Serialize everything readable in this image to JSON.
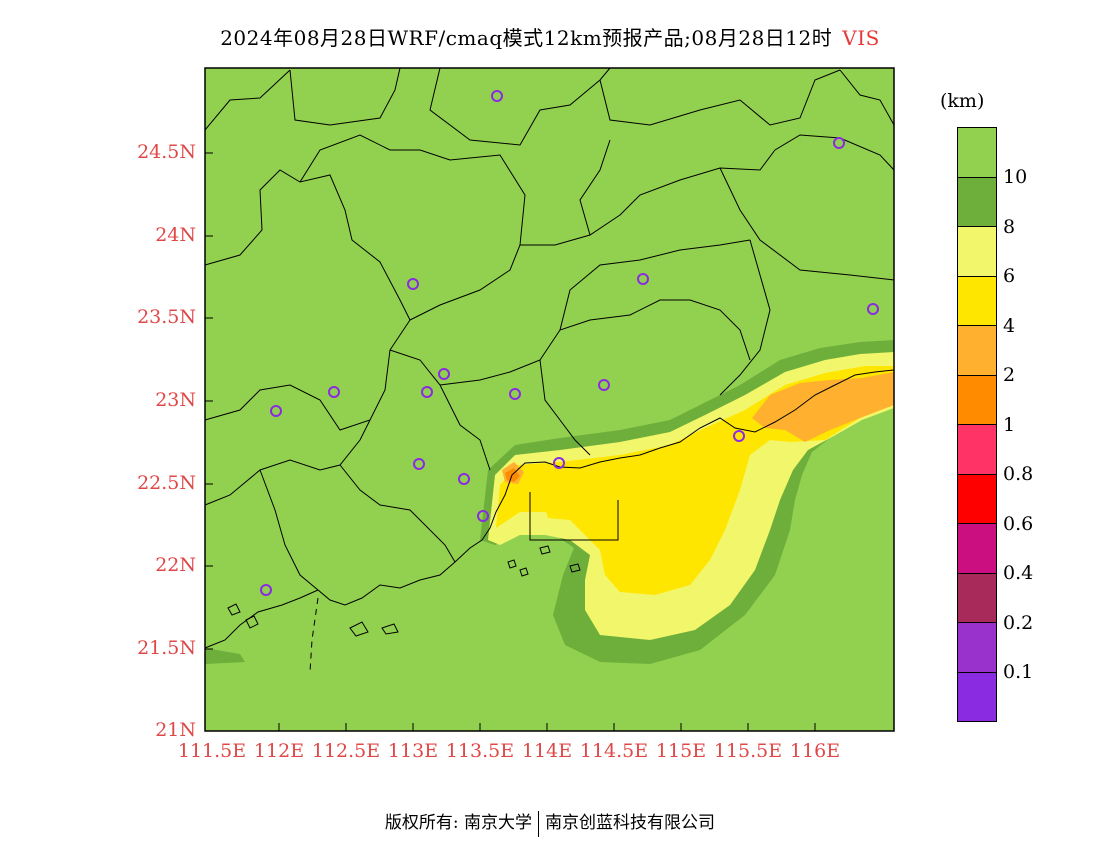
{
  "title": {
    "text": "2024年08月28日WRF/cmaq模式12km预报产品;08月28日12时",
    "variable": "VIS"
  },
  "axes": {
    "y_labels": [
      "24.5N",
      "24N",
      "23.5N",
      "23N",
      "22.5N",
      "22N",
      "21.5N",
      "21N"
    ],
    "x_labels": [
      "111.5E",
      "112E",
      "112.5E",
      "113E",
      "113.5E",
      "114E",
      "114.5E",
      "115E",
      "115.5E",
      "116E"
    ]
  },
  "legend": {
    "unit": "(km)",
    "colors": [
      "#92d050",
      "#6eaf3c",
      "#f2f66a",
      "#ffe600",
      "#ffb02e",
      "#ff8c00",
      "#ff3366",
      "#ff0000",
      "#cc0f80",
      "#a82a5a",
      "#9932cc",
      "#8a2be2"
    ],
    "labels": [
      "10",
      "8",
      "6",
      "4",
      "2",
      "1",
      "0.8",
      "0.6",
      "0.4",
      "0.2",
      "0.1"
    ]
  },
  "footer": {
    "left": "版权所有: 南京大学",
    "right": "南京创蓝科技有限公司"
  },
  "colors": {
    "land": "#92d050",
    "band8": "#6eaf3c",
    "band6": "#f2f66a",
    "band4": "#ffe600",
    "band2": "#ffb02e",
    "band1": "#ff8c00",
    "tick_label": "#e04848",
    "station": "#8a2be2"
  }
}
